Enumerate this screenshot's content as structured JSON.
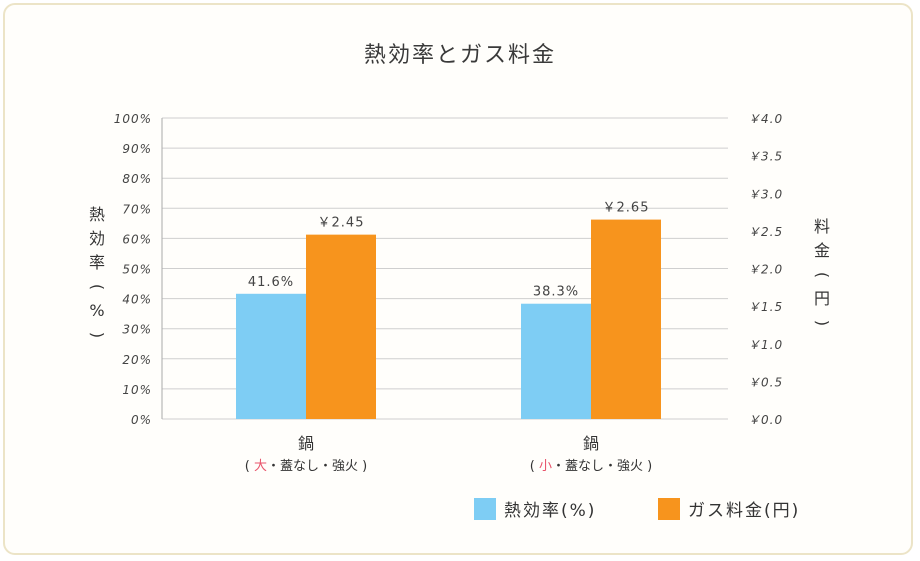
{
  "chart_data": {
    "type": "bar",
    "title": "熱効率とガス料金",
    "categories": [
      {
        "main": "鍋",
        "open": "(",
        "highlight": "大",
        "rest": "・蓋なし・強火",
        "close": ")"
      },
      {
        "main": "鍋",
        "open": "(",
        "highlight": "小",
        "rest": "・蓋なし・強火",
        "close": ")"
      }
    ],
    "series": [
      {
        "name": "熱効率(%)",
        "axis": "left",
        "color": "#7ecdf4",
        "values": [
          41.6,
          38.3
        ],
        "labels": [
          "41.6%",
          "38.3%"
        ]
      },
      {
        "name": "ガス料金(円)",
        "axis": "right",
        "color": "#f7941d",
        "values": [
          2.45,
          2.65
        ],
        "labels": [
          "￥2.45",
          "￥2.65"
        ]
      }
    ],
    "y_left": {
      "label": "熱効率(%)",
      "range": [
        0,
        100
      ],
      "ticks": [
        "0%",
        "10%",
        "20%",
        "30%",
        "40%",
        "50%",
        "60%",
        "70%",
        "80%",
        "90%",
        "100%"
      ]
    },
    "y_right": {
      "label": "料金(円)",
      "range": [
        0,
        4.0
      ],
      "ticks": [
        "￥0.0",
        "￥0.5",
        "￥1.0",
        "￥1.5",
        "￥2.0",
        "￥2.5",
        "￥3.0",
        "￥3.5",
        "￥4.0"
      ]
    },
    "grid": true,
    "legend_position": "bottom-right",
    "highlight_color": "#e8546b",
    "grid_color": "#cfcfcf"
  }
}
